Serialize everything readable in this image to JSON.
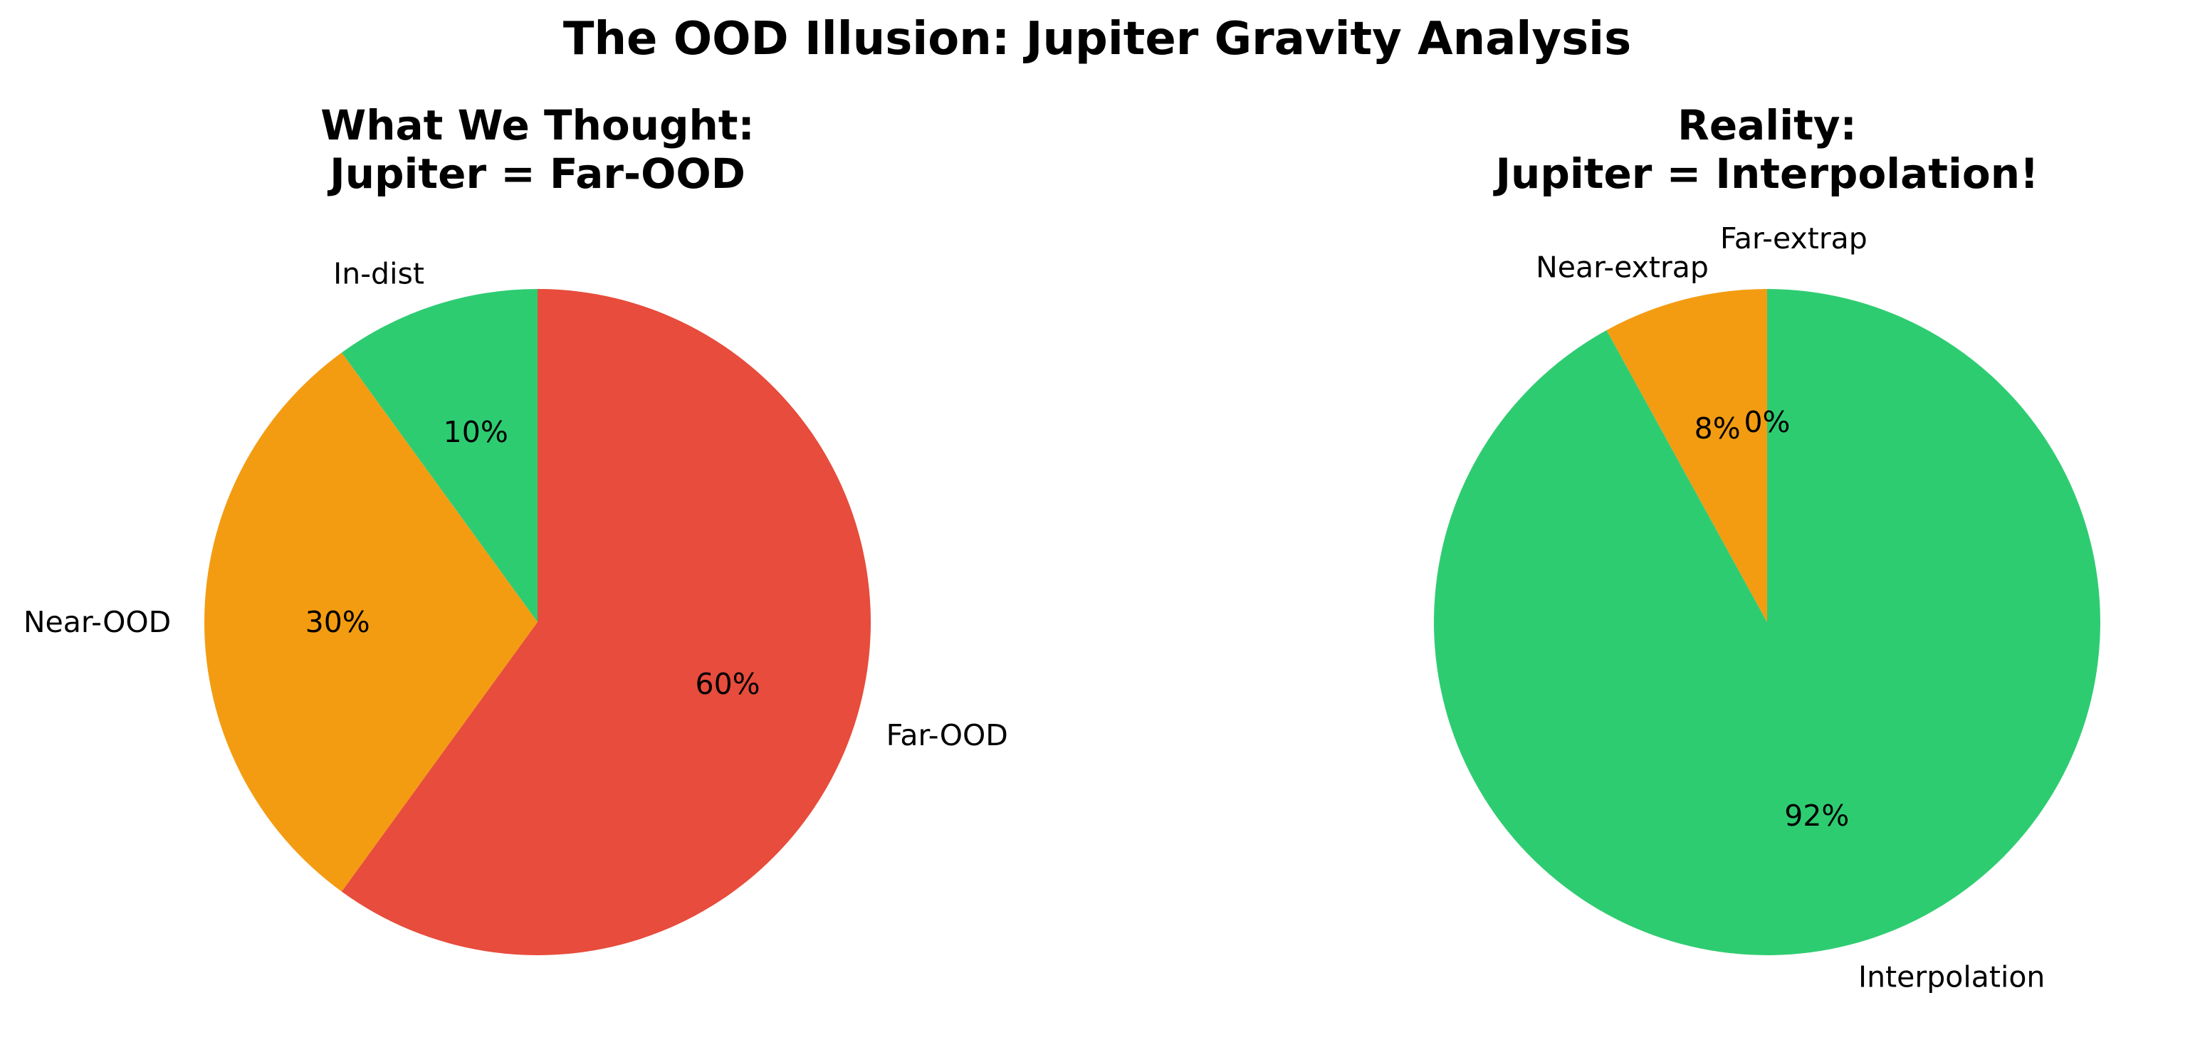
{
  "figure": {
    "title": "The OOD Illusion: Jupiter Gravity Analysis"
  },
  "chart_data": [
    {
      "type": "pie",
      "title": "What We Thought:\nJupiter = Far-OOD",
      "labels": [
        "In-dist",
        "Near-OOD",
        "Far-OOD"
      ],
      "values": [
        10,
        30,
        60
      ],
      "value_labels": [
        "10%",
        "30%",
        "60%"
      ],
      "colors": [
        "#2ecc71",
        "#f39c12",
        "#e74c3c"
      ],
      "start_angle": 90,
      "direction": "counterclockwise"
    },
    {
      "type": "pie",
      "title": "Reality:\nJupiter = Interpolation!",
      "labels": [
        "Interpolation",
        "Near-extrap",
        "Far-extrap"
      ],
      "values": [
        92,
        8,
        0
      ],
      "value_labels": [
        "92%",
        "8%",
        "0%"
      ],
      "colors": [
        "#2ecc71",
        "#f39c12",
        "#e74c3c"
      ],
      "start_angle": 90,
      "direction": "clockwise"
    }
  ]
}
